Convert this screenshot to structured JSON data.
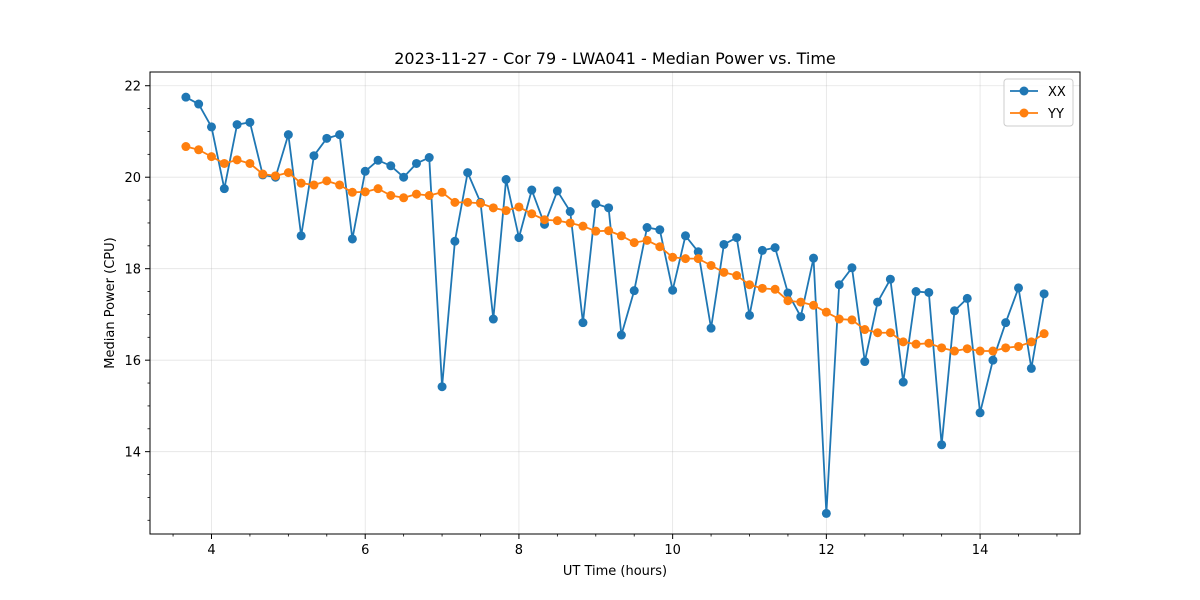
{
  "chart_data": {
    "type": "line",
    "title": "2023-11-27 - Cor 79 - LWA041 - Median Power vs. Time",
    "xlabel": "UT Time (hours)",
    "ylabel": "Median Power (CPU)",
    "xlim": [
      3.2,
      15.3
    ],
    "ylim": [
      12.2,
      22.3
    ],
    "xticks": [
      4,
      6,
      8,
      10,
      12,
      14
    ],
    "xtick_labels": [
      "4",
      "6",
      "8",
      "10",
      "12",
      "14"
    ],
    "yticks": [
      14,
      16,
      18,
      20,
      22
    ],
    "ytick_labels": [
      "14",
      "16",
      "18",
      "20",
      "22"
    ],
    "grid": true,
    "legend": "top-right",
    "x": [
      3.667,
      3.833,
      4.0,
      4.167,
      4.333,
      4.5,
      4.667,
      4.833,
      5.0,
      5.167,
      5.333,
      5.5,
      5.667,
      5.833,
      6.0,
      6.167,
      6.333,
      6.5,
      6.667,
      6.833,
      7.0,
      7.167,
      7.333,
      7.5,
      7.667,
      7.833,
      8.0,
      8.167,
      8.333,
      8.5,
      8.667,
      8.833,
      9.0,
      9.167,
      9.333,
      9.5,
      9.667,
      9.833,
      10.0,
      10.167,
      10.333,
      10.5,
      10.667,
      10.833,
      11.0,
      11.167,
      11.333,
      11.5,
      11.667,
      11.833,
      12.0,
      12.167,
      12.333,
      12.5,
      12.667,
      12.833,
      13.0,
      13.167,
      13.333,
      13.5,
      13.667,
      13.833,
      14.0,
      14.167,
      14.333,
      14.5,
      14.667,
      14.833
    ],
    "series": [
      {
        "name": "XX",
        "color": "#1f77b4",
        "values": [
          21.75,
          21.6,
          21.1,
          19.75,
          21.15,
          21.2,
          20.05,
          20.0,
          20.93,
          18.72,
          20.47,
          20.85,
          20.93,
          18.65,
          20.13,
          20.37,
          20.25,
          20.0,
          20.3,
          20.43,
          15.42,
          18.6,
          20.1,
          19.45,
          16.9,
          19.95,
          18.68,
          19.72,
          18.97,
          19.7,
          19.25,
          16.82,
          19.42,
          19.33,
          16.55,
          17.52,
          18.9,
          18.85,
          17.53,
          18.72,
          18.37,
          16.7,
          18.53,
          18.68,
          16.98,
          18.4,
          18.46,
          17.47,
          16.95,
          18.23,
          12.65,
          17.65,
          18.02,
          15.97,
          17.27,
          17.77,
          15.52,
          17.5,
          17.48,
          14.15,
          17.08,
          17.35,
          14.85,
          16.0,
          16.82,
          17.58,
          15.82,
          17.45
        ]
      },
      {
        "name": "YY",
        "color": "#ff7f0e",
        "values": [
          20.67,
          20.6,
          20.45,
          20.3,
          20.38,
          20.3,
          20.07,
          20.03,
          20.1,
          19.87,
          19.83,
          19.92,
          19.83,
          19.67,
          19.68,
          19.75,
          19.6,
          19.55,
          19.63,
          19.6,
          19.67,
          19.45,
          19.45,
          19.43,
          19.33,
          19.27,
          19.35,
          19.2,
          19.07,
          19.05,
          19.0,
          18.93,
          18.82,
          18.83,
          18.72,
          18.57,
          18.62,
          18.48,
          18.25,
          18.22,
          18.22,
          18.07,
          17.92,
          17.85,
          17.65,
          17.57,
          17.55,
          17.3,
          17.27,
          17.2,
          17.05,
          16.9,
          16.88,
          16.67,
          16.6,
          16.6,
          16.4,
          16.35,
          16.37,
          16.27,
          16.2,
          16.25,
          16.2,
          16.2,
          16.27,
          16.3,
          16.4,
          16.58
        ]
      }
    ]
  }
}
